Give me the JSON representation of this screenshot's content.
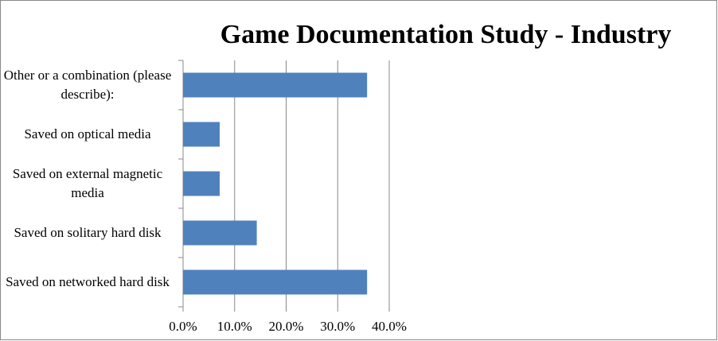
{
  "chart_data": {
    "type": "barh",
    "title": "Game Documentation Study -  Industry",
    "categories": [
      "Other or a combination (please describe):",
      "Saved on optical media",
      "Saved on external magnetic media",
      "Saved on solitary hard disk",
      "Saved on networked hard disk"
    ],
    "values": [
      35.7,
      7.1,
      7.1,
      14.3,
      35.7
    ],
    "color": "#4f81bd",
    "xlim": [
      0,
      40
    ],
    "xticks": [
      {
        "value": 0,
        "label": "0.0%"
      },
      {
        "value": 10,
        "label": "10.0%"
      },
      {
        "value": 20,
        "label": "20.0%"
      },
      {
        "value": 30,
        "label": "30.0%"
      },
      {
        "value": 40,
        "label": "40.0%"
      }
    ],
    "grid": true
  }
}
